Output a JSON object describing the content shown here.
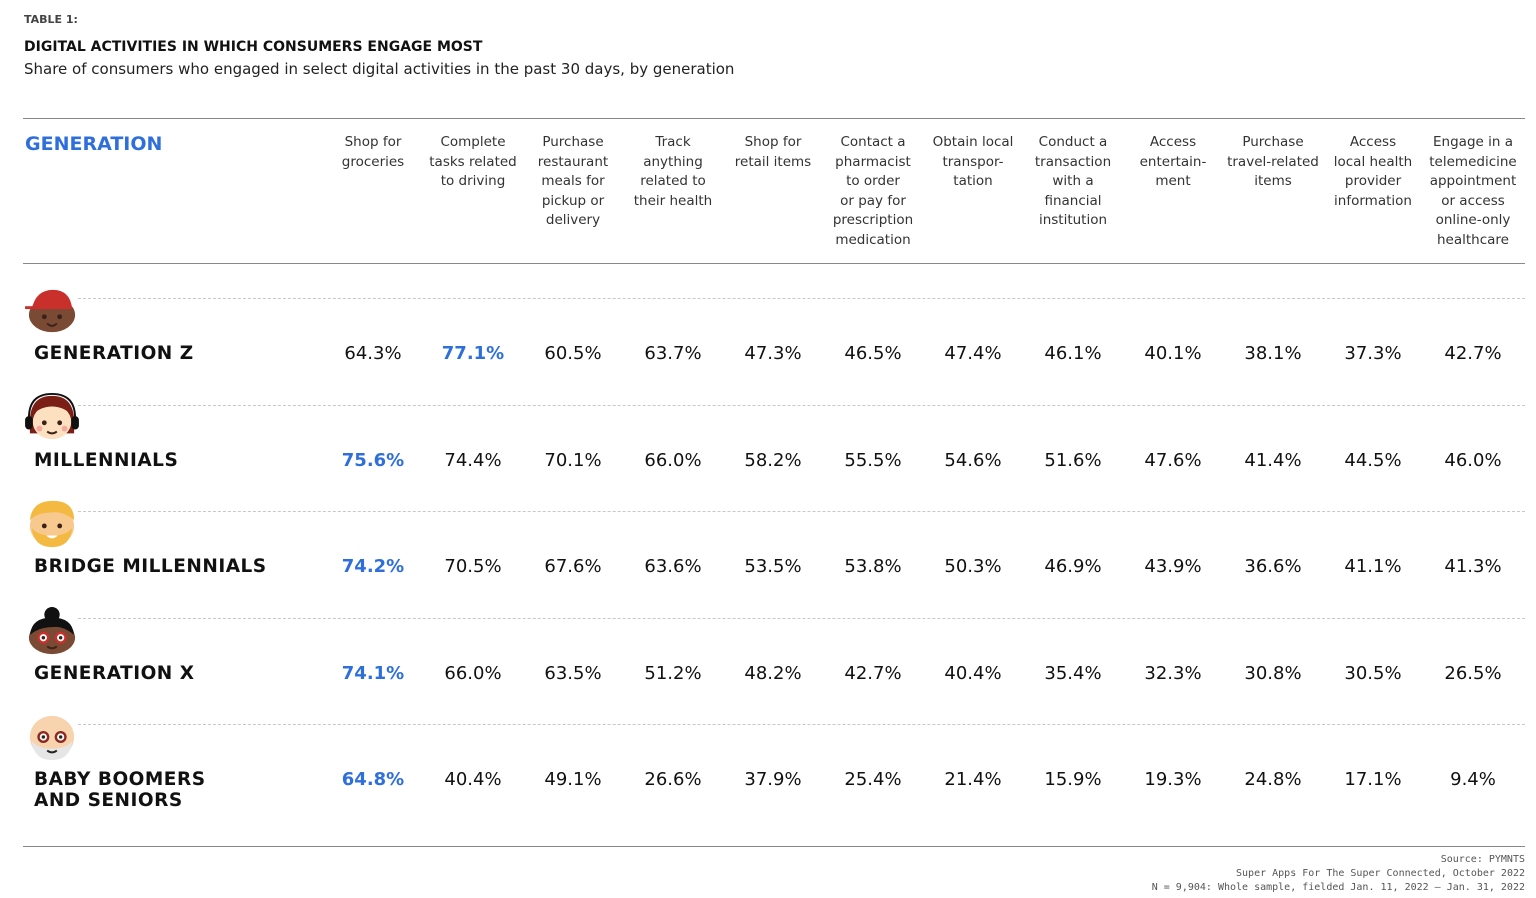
{
  "header": {
    "tag": "TABLE 1:",
    "title": "DIGITAL ACTIVITIES IN WHICH CONSUMERS ENGAGE MOST",
    "subtitle": "Share of consumers who engaged in select digital activities in the past 30 days, by generation"
  },
  "colors": {
    "highlight": "#2f6fdc"
  },
  "chart_data": {
    "type": "table",
    "row_header": "GENERATION",
    "columns": [
      "Shop for groceries",
      "Complete tasks related to driving",
      "Purchase restaurant meals for pickup or delivery",
      "Track anything related to their health",
      "Shop for retail items",
      "Contact a pharmacist to order or pay for prescription medication",
      "Obtain local transpor-tation",
      "Conduct a transaction with a financial institution",
      "Access entertain-ment",
      "Purchase travel-related items",
      "Access local health provider information",
      "Engage in a telemedicine appointment or access online-only healthcare"
    ],
    "rows": [
      {
        "label": "GENERATION Z",
        "avatar": "boy-red-cap-icon",
        "highlight": 1,
        "values": [
          "64.3%",
          "77.1%",
          "60.5%",
          "63.7%",
          "47.3%",
          "46.5%",
          "47.4%",
          "46.1%",
          "40.1%",
          "38.1%",
          "37.3%",
          "42.7%"
        ]
      },
      {
        "label": "MILLENNIALS",
        "avatar": "girl-headphones-icon",
        "highlight": 0,
        "values": [
          "75.6%",
          "74.4%",
          "70.1%",
          "66.0%",
          "58.2%",
          "55.5%",
          "54.6%",
          "51.6%",
          "47.6%",
          "41.4%",
          "44.5%",
          "46.0%"
        ]
      },
      {
        "label": "BRIDGE MILLENNIALS",
        "avatar": "bearded-man-icon",
        "highlight": 0,
        "values": [
          "74.2%",
          "70.5%",
          "67.6%",
          "63.6%",
          "53.5%",
          "53.8%",
          "50.3%",
          "46.9%",
          "43.9%",
          "36.6%",
          "41.1%",
          "41.3%"
        ]
      },
      {
        "label": "GENERATION X",
        "avatar": "woman-glasses-icon",
        "highlight": 0,
        "values": [
          "74.1%",
          "66.0%",
          "63.5%",
          "51.2%",
          "48.2%",
          "42.7%",
          "40.4%",
          "35.4%",
          "32.3%",
          "30.8%",
          "30.5%",
          "26.5%"
        ]
      },
      {
        "label": "BABY BOOMERS AND SENIORS",
        "avatar": "senior-glasses-icon",
        "highlight": 0,
        "values": [
          "64.8%",
          "40.4%",
          "49.1%",
          "26.6%",
          "37.9%",
          "25.4%",
          "21.4%",
          "15.9%",
          "19.3%",
          "24.8%",
          "17.1%",
          "9.4%"
        ]
      }
    ]
  },
  "footer": {
    "source": "Source: PYMNTS",
    "report": "Super Apps For The Super Connected, October 2022",
    "sample": "N = 9,904: Whole sample, fielded Jan. 11, 2022 – Jan. 31, 2022"
  }
}
